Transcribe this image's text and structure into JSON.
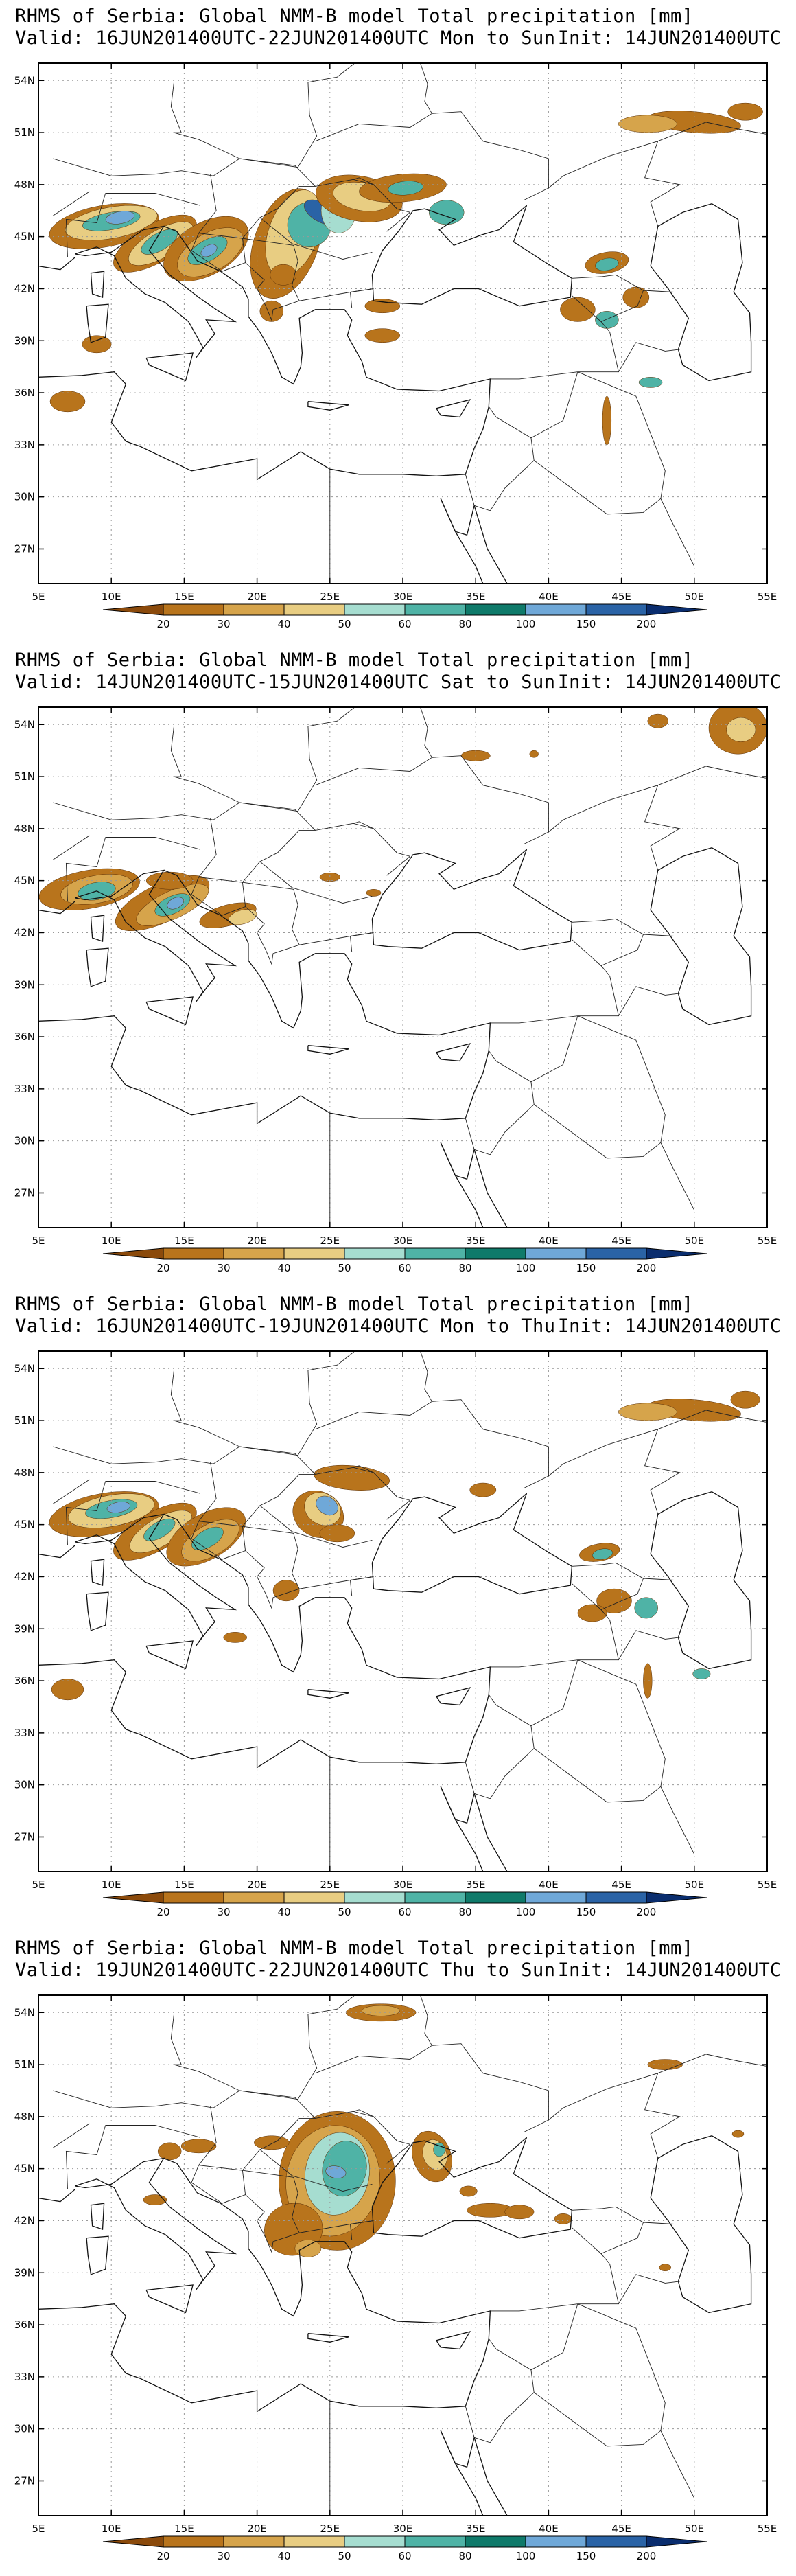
{
  "panels": [
    {
      "title": "RHMS of Serbia: Global NMM-B model Total precipitation [mm]",
      "valid": "Valid: 16JUN201400UTC-22JUN201400UTC Mon to Sun",
      "init": "Init: 14JUN201400UTC",
      "precip_regions": [
        {
          "region": "northern Italy / Alps",
          "peak_class": "100"
        },
        {
          "region": "Croatia / Bosnia / Serbia",
          "peak_class": "100"
        },
        {
          "region": "Romania / Carpathians",
          "peak_class": "150"
        },
        {
          "region": "Ukraine / Moldova",
          "peak_class": "60"
        },
        {
          "region": "Caucasus",
          "peak_class": "60"
        },
        {
          "region": "southern Russia",
          "peak_class": "40"
        }
      ]
    },
    {
      "title": "RHMS of Serbia: Global NMM-B model Total precipitation [mm]",
      "valid": "Valid: 14JUN201400UTC-15JUN201400UTC Sat to Sun",
      "init": "Init: 14JUN201400UTC",
      "precip_regions": [
        {
          "region": "northern Italy / Alps",
          "peak_class": "80"
        },
        {
          "region": "Croatia / Bosnia",
          "peak_class": "100"
        },
        {
          "region": "northern Russia",
          "peak_class": "40"
        }
      ]
    },
    {
      "title": "RHMS of Serbia: Global NMM-B model Total precipitation [mm]",
      "valid": "Valid: 16JUN201400UTC-19JUN201400UTC Mon to Thu",
      "init": "Init: 14JUN201400UTC",
      "precip_regions": [
        {
          "region": "northern Italy / Alps",
          "peak_class": "100"
        },
        {
          "region": "Croatia / Bosnia",
          "peak_class": "100"
        },
        {
          "region": "Romania",
          "peak_class": "100"
        },
        {
          "region": "Caucasus",
          "peak_class": "60"
        },
        {
          "region": "southern Russia",
          "peak_class": "40"
        }
      ]
    },
    {
      "title": "RHMS of Serbia: Global NMM-B model Total precipitation [mm]",
      "valid": "Valid: 19JUN201400UTC-22JUN201400UTC Thu to Sun",
      "init": "Init: 14JUN201400UTC",
      "precip_regions": [
        {
          "region": "Serbia / Romania / Bulgaria",
          "peak_class": "100"
        },
        {
          "region": "Ukraine",
          "peak_class": "60"
        },
        {
          "region": "Belarus",
          "peak_class": "30"
        },
        {
          "region": "northern Russia",
          "peak_class": "30"
        }
      ]
    }
  ],
  "map": {
    "lon_range": [
      5,
      55
    ],
    "lat_range": [
      25,
      55
    ],
    "lon_ticks": [
      "5E",
      "10E",
      "15E",
      "20E",
      "25E",
      "30E",
      "35E",
      "40E",
      "45E",
      "50E",
      "55E"
    ],
    "lat_ticks": [
      "54N",
      "51N",
      "48N",
      "45N",
      "42N",
      "39N",
      "36N",
      "33N",
      "30N",
      "27N"
    ],
    "grid_lines": "dotted"
  },
  "colorbar": {
    "labels": [
      "20",
      "30",
      "40",
      "50",
      "60",
      "80",
      "100",
      "150",
      "200"
    ],
    "colors": [
      "#8B4A0B",
      "#B8741C",
      "#D6A44B",
      "#E8CD82",
      "#A6DDD0",
      "#4FB3A6",
      "#0F7A6A",
      "#6FA8D8",
      "#2A63A6",
      "#0A2D6E"
    ]
  }
}
